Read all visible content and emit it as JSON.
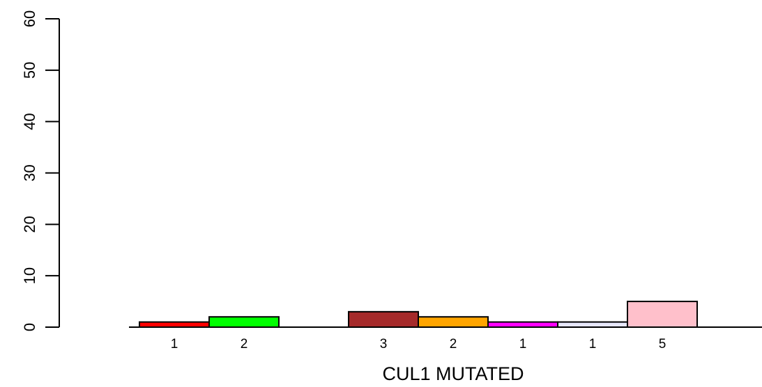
{
  "chart_data": {
    "type": "bar",
    "xlabel": "CUL1 MUTATED",
    "ylabel": "",
    "title": "",
    "ylim": [
      0,
      60
    ],
    "yticks": [
      0,
      10,
      20,
      30,
      40,
      50,
      60
    ],
    "grid": false,
    "legend": "none",
    "bars": [
      {
        "value": 1,
        "label": "1",
        "color": "#ff0000",
        "gap_before": false
      },
      {
        "value": 2,
        "label": "2",
        "color": "#00ff00",
        "gap_before": false
      },
      {
        "value": 3,
        "label": "3",
        "color": "#a52a2a",
        "gap_before": true
      },
      {
        "value": 2,
        "label": "2",
        "color": "#ffa500",
        "gap_before": false
      },
      {
        "value": 1,
        "label": "1",
        "color": "#ff00ff",
        "gap_before": false
      },
      {
        "value": 1,
        "label": "1",
        "color": "#e6e6fa",
        "gap_before": false
      },
      {
        "value": 5,
        "label": "5",
        "color": "#ffc0cb",
        "gap_before": false
      }
    ]
  }
}
